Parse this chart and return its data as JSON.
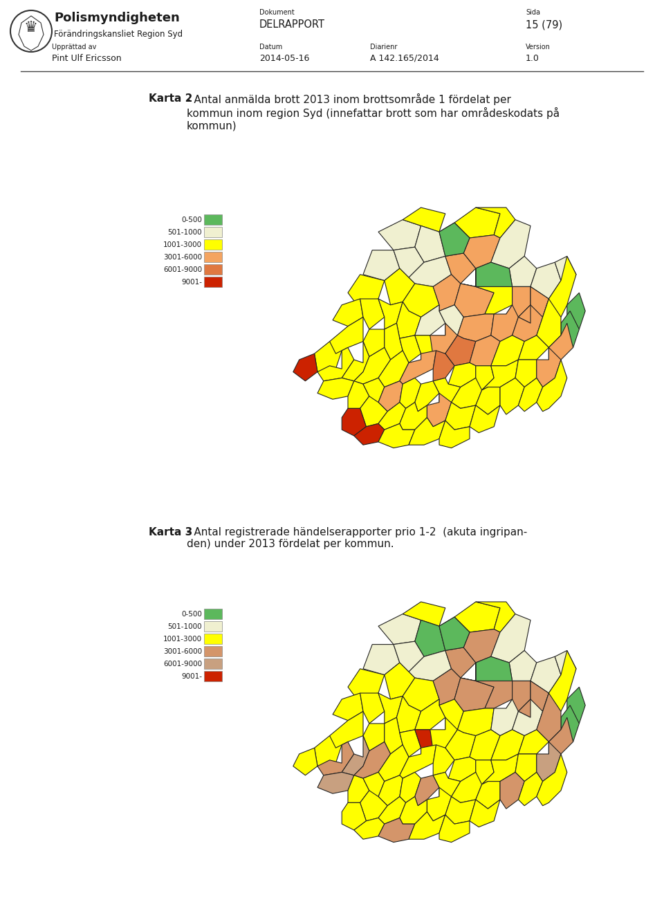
{
  "header": {
    "org_name": "Polismyndigheten",
    "org_sub": "Förändringskansliet Region Syd",
    "doc_label": "Dokument",
    "doc_value": "DELRAPPORT",
    "page_label": "Sida",
    "page_value": "15 (79)",
    "author_label": "Upprättad av",
    "author_value": "Pint Ulf Ericsson",
    "date_label": "Datum",
    "date_value": "2014-05-16",
    "diarienr_label": "Diarienr",
    "diarienr_value": "A 142.165/2014",
    "version_label": "Version",
    "version_value": "1.0"
  },
  "map1": {
    "title_bold": "Karta 2",
    "title_rest": "- Antal anmälda brott 2013 inom brottsområde 1 fördelat per\nkommun inom region Syd (innefattar brott som har områdeskodats på\nkommun)",
    "legend": {
      "labels": [
        "0-500",
        "501-1000",
        "1001-3000",
        "3001-6000",
        "6001-9000",
        "9001-"
      ],
      "colors": [
        "#5cb85c",
        "#f0f0d0",
        "#ffff00",
        "#f4a460",
        "#e07840",
        "#cc2200"
      ]
    }
  },
  "map2": {
    "title_bold": "Karta 3",
    "title_rest": "- Antal registrerade händelserapporter prio 1-2  (akuta ingripan-\nden) under 2013 fördelat per kommun.",
    "legend": {
      "labels": [
        "0-500",
        "501-1000",
        "1001-3000",
        "3001-6000",
        "6001-9000",
        "9001-"
      ],
      "colors": [
        "#5cb85c",
        "#f0f0d0",
        "#ffff00",
        "#d4956a",
        "#c8a080",
        "#cc2200"
      ]
    }
  },
  "bg_color": "#ffffff",
  "text_color": "#1a1a1a",
  "separator_color": "#555555"
}
